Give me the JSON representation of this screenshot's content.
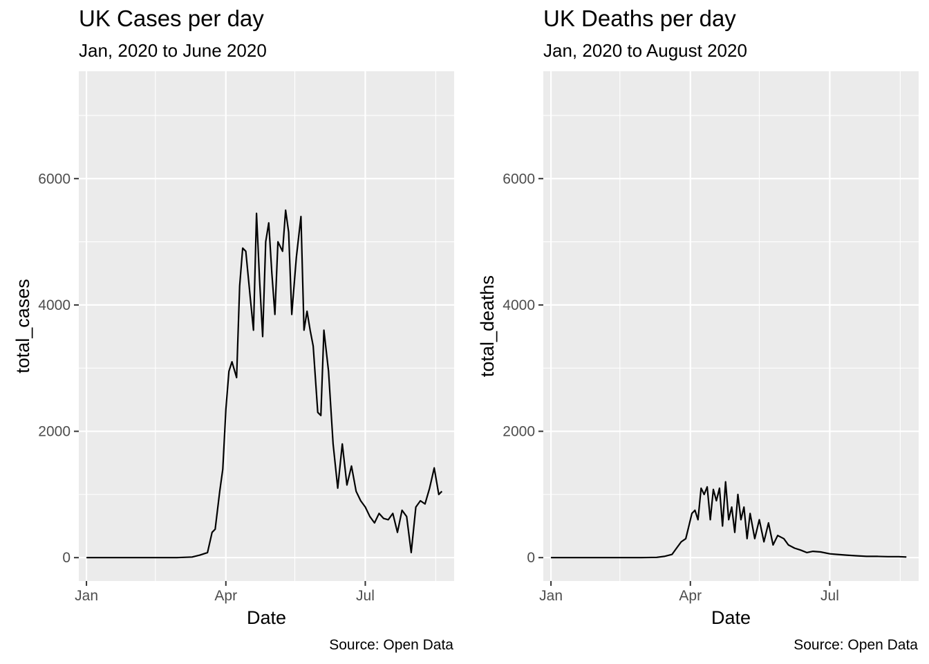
{
  "chart_data": [
    {
      "type": "line",
      "title": "UK Cases per day",
      "subtitle": "Jan, 2020 to June 2020",
      "caption": "Source: Open Data",
      "xlabel": "Date",
      "ylabel": "total_cases",
      "x_ticks": [
        "Jan",
        "Apr",
        "Jul"
      ],
      "y_ticks": [
        "0",
        "2000",
        "4000",
        "6000"
      ],
      "xlim": [
        "2019-12-27",
        "2020-08-28"
      ],
      "ylim": [
        -370,
        7700
      ],
      "grid": true,
      "series": [
        {
          "x": [
            "2020-01-01",
            "2020-01-31",
            "2020-02-29",
            "2020-03-10",
            "2020-03-15",
            "2020-03-20",
            "2020-03-23",
            "2020-03-25",
            "2020-03-28",
            "2020-03-30",
            "2020-04-01",
            "2020-04-03",
            "2020-04-05",
            "2020-04-08",
            "2020-04-10",
            "2020-04-12",
            "2020-04-14",
            "2020-04-17",
            "2020-04-19",
            "2020-04-21",
            "2020-04-23",
            "2020-04-25",
            "2020-04-27",
            "2020-04-29",
            "2020-05-01",
            "2020-05-03",
            "2020-05-05",
            "2020-05-08",
            "2020-05-10",
            "2020-05-12",
            "2020-05-14",
            "2020-05-17",
            "2020-05-20",
            "2020-05-22",
            "2020-05-24",
            "2020-05-26",
            "2020-05-28",
            "2020-05-31",
            "2020-06-02",
            "2020-06-04",
            "2020-06-07",
            "2020-06-10",
            "2020-06-13",
            "2020-06-16",
            "2020-06-19",
            "2020-06-22",
            "2020-06-25",
            "2020-06-28",
            "2020-07-01",
            "2020-07-04",
            "2020-07-07",
            "2020-07-10",
            "2020-07-13",
            "2020-07-16",
            "2020-07-19",
            "2020-07-22",
            "2020-07-25",
            "2020-07-28",
            "2020-07-31",
            "2020-08-03",
            "2020-08-06",
            "2020-08-09",
            "2020-08-12",
            "2020-08-15",
            "2020-08-18",
            "2020-08-20"
          ],
          "values": [
            0,
            0,
            0,
            10,
            40,
            80,
            400,
            450,
            1050,
            1400,
            2350,
            2950,
            3100,
            2850,
            4300,
            4900,
            4850,
            4100,
            3600,
            5450,
            4400,
            3500,
            5000,
            5300,
            4500,
            3850,
            5000,
            4850,
            5500,
            5150,
            3850,
            4750,
            5400,
            3600,
            3900,
            3600,
            3350,
            2300,
            2250,
            3600,
            2950,
            1800,
            1100,
            1800,
            1150,
            1450,
            1050,
            900,
            800,
            650,
            550,
            700,
            620,
            600,
            700,
            400,
            750,
            650,
            80,
            800,
            900,
            850,
            1100,
            1420,
            1000,
            1050
          ]
        }
      ]
    },
    {
      "type": "line",
      "title": "UK Deaths per day",
      "subtitle": "Jan, 2020 to August 2020",
      "caption": "Source: Open Data",
      "xlabel": "Date",
      "ylabel": "total_deaths",
      "x_ticks": [
        "Jan",
        "Apr",
        "Jul"
      ],
      "y_ticks": [
        "0",
        "2000",
        "4000",
        "6000"
      ],
      "xlim": [
        "2019-12-27",
        "2020-08-28"
      ],
      "ylim": [
        -370,
        7700
      ],
      "grid": true,
      "series": [
        {
          "x": [
            "2020-01-01",
            "2020-01-31",
            "2020-02-29",
            "2020-03-10",
            "2020-03-15",
            "2020-03-20",
            "2020-03-23",
            "2020-03-26",
            "2020-03-29",
            "2020-03-31",
            "2020-04-02",
            "2020-04-04",
            "2020-04-06",
            "2020-04-08",
            "2020-04-10",
            "2020-04-12",
            "2020-04-14",
            "2020-04-16",
            "2020-04-18",
            "2020-04-20",
            "2020-04-22",
            "2020-04-24",
            "2020-04-26",
            "2020-04-28",
            "2020-04-30",
            "2020-05-02",
            "2020-05-04",
            "2020-05-06",
            "2020-05-08",
            "2020-05-10",
            "2020-05-13",
            "2020-05-16",
            "2020-05-19",
            "2020-05-22",
            "2020-05-25",
            "2020-05-28",
            "2020-06-01",
            "2020-06-04",
            "2020-06-08",
            "2020-06-12",
            "2020-06-16",
            "2020-06-20",
            "2020-06-25",
            "2020-07-01",
            "2020-07-06",
            "2020-07-12",
            "2020-07-18",
            "2020-07-25",
            "2020-08-01",
            "2020-08-08",
            "2020-08-15",
            "2020-08-20"
          ],
          "values": [
            0,
            0,
            0,
            5,
            20,
            50,
            150,
            250,
            300,
            500,
            700,
            750,
            600,
            1100,
            1000,
            1120,
            600,
            1080,
            900,
            1100,
            500,
            1200,
            600,
            800,
            400,
            1000,
            600,
            800,
            300,
            700,
            300,
            600,
            250,
            550,
            200,
            350,
            300,
            200,
            150,
            120,
            80,
            100,
            90,
            60,
            50,
            40,
            30,
            20,
            20,
            15,
            15,
            10
          ]
        }
      ]
    }
  ]
}
